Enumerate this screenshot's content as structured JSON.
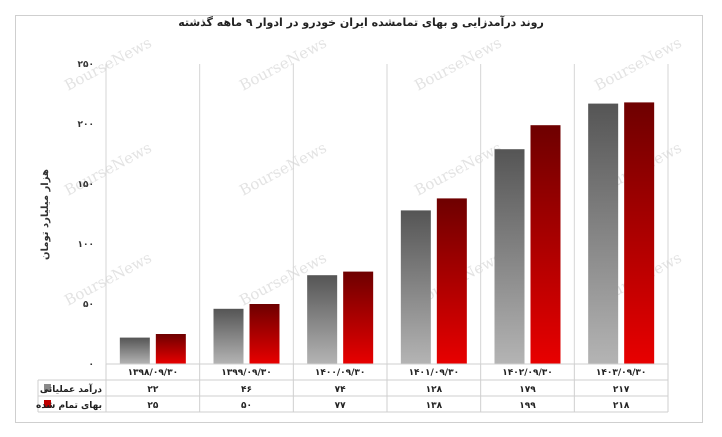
{
  "chart_data": {
    "type": "bar",
    "title": "روند درآمدزایی و بهای تمامشده ایران خودرو در ادوار ۹ ماهه گذشته",
    "ylabel": "هزار میلیارد تومان",
    "xlabel": "",
    "ylim": [
      0,
      250
    ],
    "yticks": [
      0,
      50,
      100,
      150,
      200,
      250
    ],
    "ytick_labels": [
      "۰",
      "۵۰",
      "۱۰۰",
      "۱۵۰",
      "۲۰۰",
      "۲۵۰"
    ],
    "grid": "vertical separators",
    "legend": "table-left",
    "categories": [
      "۱۳۹۸/۰۹/۳۰",
      "۱۳۹۹/۰۹/۳۰",
      "۱۴۰۰/۰۹/۳۰",
      "۱۴۰۱/۰۹/۳۰",
      "۱۴۰۲/۰۹/۳۰",
      "۱۴۰۳/۰۹/۳۰"
    ],
    "series": [
      {
        "name": "درآمد عملیاتی",
        "values": [
          22,
          46,
          74,
          128,
          179,
          217
        ],
        "value_labels": [
          "۲۲",
          "۴۶",
          "۷۴",
          "۱۲۸",
          "۱۷۹",
          "۲۱۷"
        ],
        "color": "#7a7a7a"
      },
      {
        "name": "بهای تمام شده",
        "values": [
          25,
          50,
          77,
          138,
          199,
          218
        ],
        "value_labels": [
          "۲۵",
          "۵۰",
          "۷۷",
          "۱۳۸",
          "۱۹۹",
          "۲۱۸"
        ],
        "color": "#c00000"
      }
    ]
  },
  "watermark": "BourseNews"
}
